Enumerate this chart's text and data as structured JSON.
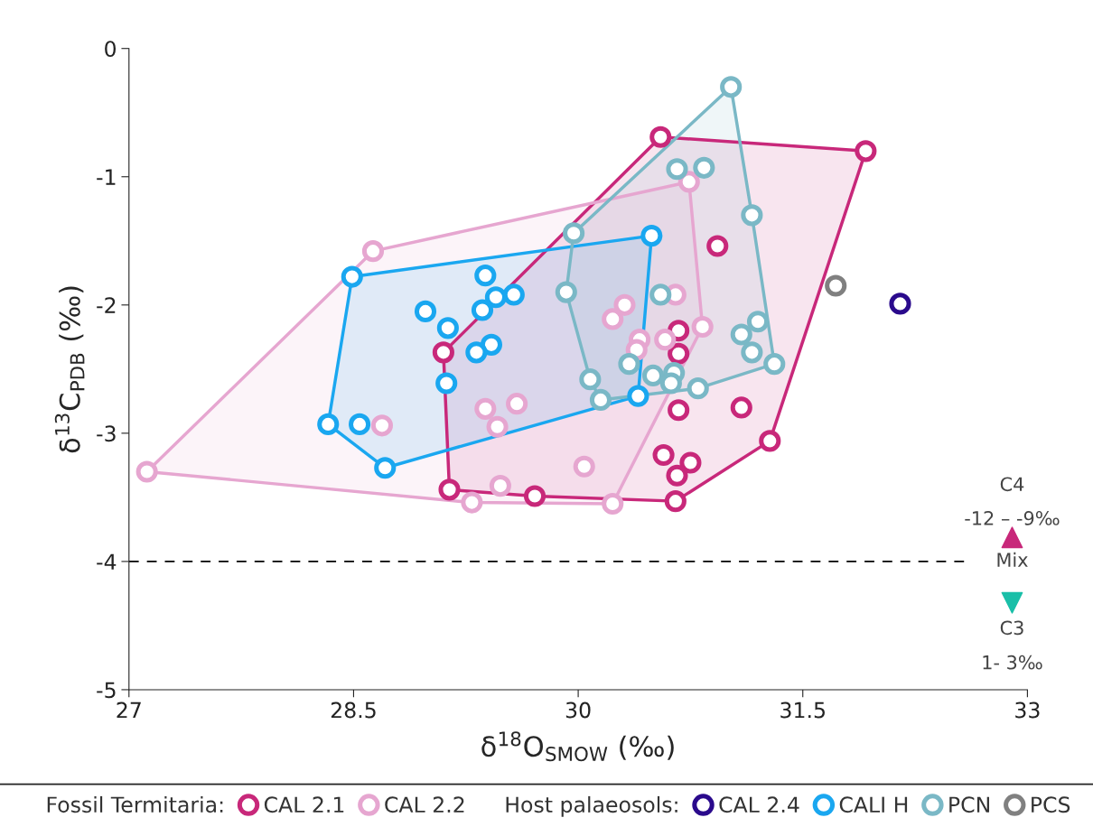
{
  "chart_data": {
    "type": "scatter",
    "xlabel": "δ$^{18}$O$_{SMOW}$ (‰)",
    "ylabel": "δ$^{13}$C$_{PDB}$ (‰)",
    "xlim": [
      27,
      33
    ],
    "xticks": [
      27,
      28.5,
      30,
      31.5,
      33
    ],
    "ylim": [
      -5,
      0
    ],
    "yticks": [
      0,
      -1,
      -2,
      -3,
      -4,
      -5
    ],
    "grid": false,
    "legend": "bottom",
    "marker": "circle",
    "ref_lines": [
      {
        "axis": "y",
        "value": -4,
        "label": "Mix",
        "line_style": "dashed",
        "color": "#000000"
      }
    ],
    "annotations": [
      "Fossil Termitaria:",
      "Host palaeosols:",
      "C4",
      "-12 – -9‰",
      "C3",
      "1- 3‰"
    ],
    "series": [
      {
        "name": "CAL 2.1",
        "color": "#c8287a",
        "x": [
          30.55,
          31.92,
          30.93,
          29.1,
          30.67,
          30.67,
          30.67,
          31.09,
          31.28,
          30.57,
          30.75,
          30.66,
          30.65,
          29.14,
          29.71
        ],
        "values": [
          -0.69,
          -0.8,
          -1.54,
          -2.37,
          -2.2,
          -2.38,
          -2.82,
          -2.8,
          -3.06,
          -3.17,
          -3.23,
          -3.33,
          -3.53,
          -3.44,
          -3.49
        ]
      },
      {
        "name": "CAL 2.2",
        "color": "#e6a6d0",
        "x": [
          27.12,
          28.63,
          28.69,
          30.74,
          30.65,
          30.31,
          30.23,
          30.83,
          30.41,
          30.39,
          30.58,
          29.38,
          29.59,
          29.46,
          30.04,
          29.48,
          29.29,
          30.23
        ],
        "values": [
          -3.3,
          -1.58,
          -2.94,
          -1.04,
          -1.92,
          -2.0,
          -2.11,
          -2.17,
          -2.27,
          -2.35,
          -2.27,
          -2.81,
          -2.77,
          -2.95,
          -3.26,
          -3.41,
          -3.54,
          -3.55
        ]
      },
      {
        "name": "CAL 2.4",
        "color": "#2a0a8c",
        "x": [
          32.15
        ],
        "values": [
          -1.99
        ]
      },
      {
        "name": "CALI H",
        "color": "#1aa7f0",
        "x": [
          28.49,
          28.98,
          29.13,
          29.38,
          29.45,
          29.57,
          29.36,
          29.42,
          29.32,
          29.12,
          28.33,
          28.54,
          28.71,
          30.49,
          30.4
        ],
        "values": [
          -1.78,
          -2.05,
          -2.18,
          -1.77,
          -1.94,
          -1.92,
          -2.04,
          -2.31,
          -2.37,
          -2.61,
          -2.93,
          -2.93,
          -3.27,
          -1.46,
          -2.71
        ]
      },
      {
        "name": "PCN",
        "color": "#7ab8c6",
        "x": [
          31.02,
          30.66,
          30.84,
          31.16,
          29.97,
          29.92,
          30.55,
          30.34,
          30.5,
          30.64,
          30.62,
          30.8,
          30.08,
          30.15,
          31.09,
          31.2,
          31.16,
          31.31
        ],
        "values": [
          -0.3,
          -0.94,
          -0.93,
          -1.3,
          -1.44,
          -1.9,
          -1.92,
          -2.46,
          -2.55,
          -2.53,
          -2.61,
          -2.65,
          -2.58,
          -2.74,
          -2.23,
          -2.13,
          -2.37,
          -2.46
        ]
      },
      {
        "name": "PCS",
        "color": "#808080",
        "x": [
          31.72
        ],
        "values": [
          -1.85
        ]
      }
    ]
  }
}
